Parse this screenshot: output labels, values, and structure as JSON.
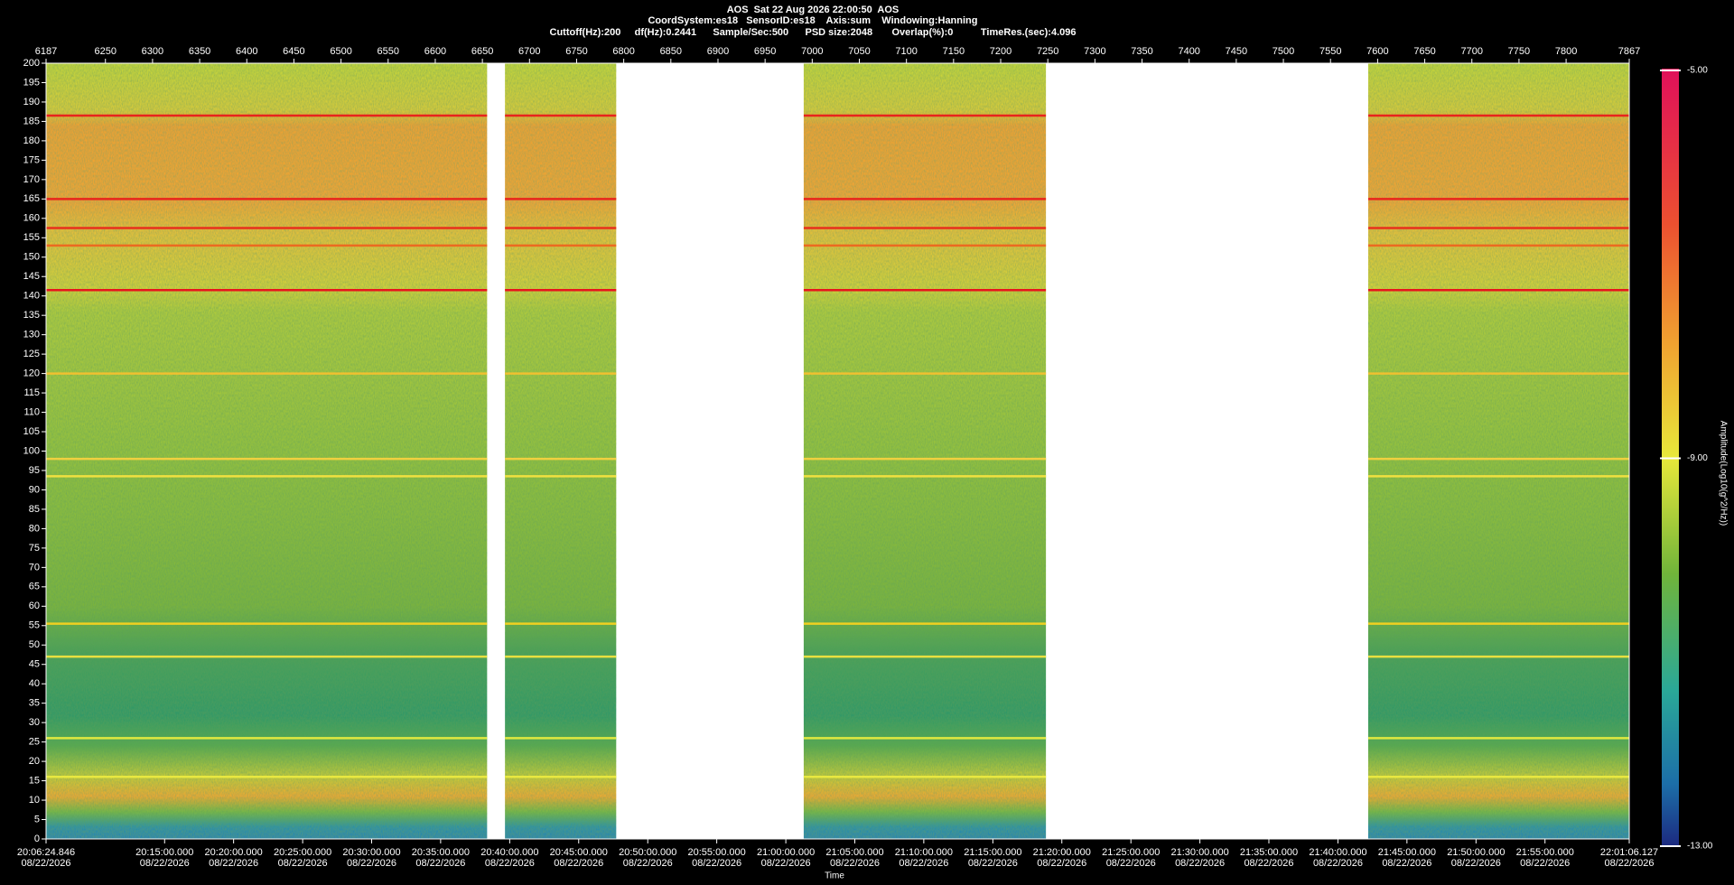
{
  "chart_data": {
    "type": "spectrogram",
    "title_lines": [
      "AOS  Sat 22 Aug 2026 22:00:50  AOS",
      "CoordSystem:es18   SensorID:es18    Axis:sum    Windowing:Hanning",
      "Cuttoff(Hz):200     df(Hz):0.2441      Sample/Sec:500      PSD size:2048       Overlap(%):0          TimeRes.(sec):4.096"
    ],
    "x_label": "Time",
    "colorbar_label": "Amplitude(Log10(g^2/Hz))",
    "xlim": [
      6187,
      7867
    ],
    "xticks": [
      6187,
      6250,
      6300,
      6350,
      6400,
      6450,
      6500,
      6550,
      6600,
      6650,
      6700,
      6750,
      6800,
      6850,
      6900,
      6950,
      7000,
      7050,
      7100,
      7150,
      7200,
      7250,
      7300,
      7350,
      7400,
      7450,
      7500,
      7550,
      7600,
      7650,
      7700,
      7750,
      7800,
      7867
    ],
    "ylim": [
      0,
      200
    ],
    "yticks": [
      0,
      5,
      10,
      15,
      20,
      25,
      30,
      35,
      40,
      45,
      50,
      55,
      60,
      65,
      70,
      75,
      80,
      85,
      90,
      95,
      100,
      105,
      110,
      115,
      120,
      125,
      130,
      135,
      140,
      145,
      150,
      155,
      160,
      165,
      170,
      175,
      180,
      185,
      190,
      195,
      200
    ],
    "x2ticks": [
      {
        "value": 6187,
        "label": "20:06:24.846"
      },
      {
        "value": 6312.8,
        "label": "20:15:00.000"
      },
      {
        "value": 6386.0,
        "label": "20:20:00.000"
      },
      {
        "value": 6459.3,
        "label": "20:25:00.000"
      },
      {
        "value": 6532.5,
        "label": "20:30:00.000"
      },
      {
        "value": 6605.7,
        "label": "20:35:00.000"
      },
      {
        "value": 6679.0,
        "label": "20:40:00.000"
      },
      {
        "value": 6752.2,
        "label": "20:45:00.000"
      },
      {
        "value": 6825.5,
        "label": "20:50:00.000"
      },
      {
        "value": 6898.7,
        "label": "20:55:00.000"
      },
      {
        "value": 6972.0,
        "label": "21:00:00.000"
      },
      {
        "value": 7045.2,
        "label": "21:05:00.000"
      },
      {
        "value": 7118.4,
        "label": "21:10:00.000"
      },
      {
        "value": 7191.7,
        "label": "21:15:00.000"
      },
      {
        "value": 7264.9,
        "label": "21:20:00.000"
      },
      {
        "value": 7338.2,
        "label": "21:25:00.000"
      },
      {
        "value": 7411.4,
        "label": "21:30:00.000"
      },
      {
        "value": 7484.6,
        "label": "21:35:00.000"
      },
      {
        "value": 7557.9,
        "label": "21:40:00.000"
      },
      {
        "value": 7631.1,
        "label": "21:45:00.000"
      },
      {
        "value": 7704.4,
        "label": "21:50:00.000"
      },
      {
        "value": 7777.6,
        "label": "21:55:00.000"
      },
      {
        "value": 7867,
        "label": "22:01:06.127"
      }
    ],
    "x2_dates": [
      "08/22/2026",
      "08/22/2026",
      "08/22/2026",
      "08/22/2026",
      "08/22/2026",
      "08/22/2026",
      "08/22/2026",
      "08/22/2026",
      "08/22/2026",
      "08/22/2026",
      "08/22/2026",
      "08/22/2026",
      "08/22/2026",
      "08/22/2026",
      "08/22/2026",
      "08/22/2026",
      "08/22/2026",
      "08/22/2026",
      "08/22/2026",
      "08/22/2026",
      "08/22/2026",
      "08/22/2026",
      "08/22/2026"
    ],
    "segments": [
      [
        6187,
        6655
      ],
      [
        6674,
        6792
      ],
      [
        6991,
        7248
      ],
      [
        7590,
        7867
      ]
    ],
    "line_freqs": [
      186.5,
      165,
      157.5,
      153,
      141.5,
      120,
      98,
      93.5,
      55.5,
      47,
      26,
      16
    ],
    "line_colors": [
      "#e8241c",
      "#e8241c",
      "#e8301c",
      "#ec6a20",
      "#e8141c",
      "#f0c030",
      "#f0d040",
      "#f0e040",
      "#f0d020",
      "#e8e040",
      "#e0e840",
      "#e8e840"
    ],
    "clim": [
      -13,
      -5
    ],
    "cticks": [
      {
        "value": -5,
        "label": "-5.00"
      },
      {
        "value": -9,
        "label": "-9.00"
      },
      {
        "value": -13,
        "label": "-13.00"
      }
    ]
  }
}
